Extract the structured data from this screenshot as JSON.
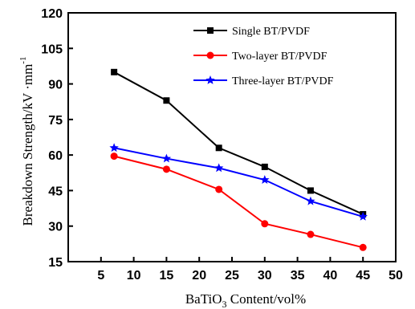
{
  "chart_data": {
    "type": "line",
    "xlabel": {
      "main": "BaTiO",
      "sub": "3",
      "rest": " Content/vol%"
    },
    "ylabel": {
      "main": "Breakdown Strength/kV ·mm",
      "sup": "-1"
    },
    "xlim": [
      0,
      50
    ],
    "ylim": [
      15,
      120
    ],
    "xticks": [
      5,
      10,
      15,
      20,
      25,
      30,
      35,
      40,
      45,
      50
    ],
    "yticks": [
      15,
      30,
      45,
      60,
      75,
      90,
      105,
      120
    ],
    "grid": false,
    "legend_position": "top-right",
    "series": [
      {
        "name": "Single BT/PVDF",
        "color": "#000000",
        "marker": "square",
        "x": [
          7,
          15,
          23,
          30,
          37,
          45
        ],
        "y": [
          95,
          83,
          63,
          55,
          45,
          35
        ]
      },
      {
        "name": "Two-layer BT/PVDF",
        "color": "#ff0000",
        "marker": "circle",
        "x": [
          7,
          15,
          23,
          30,
          37,
          45
        ],
        "y": [
          59.5,
          54,
          45.5,
          31,
          26.5,
          21
        ]
      },
      {
        "name": "Three-layer BT/PVDF",
        "color": "#0000ff",
        "marker": "star",
        "x": [
          7,
          15,
          23,
          30,
          37,
          45
        ],
        "y": [
          63,
          58.5,
          54.5,
          49.5,
          40.5,
          34
        ]
      }
    ]
  }
}
